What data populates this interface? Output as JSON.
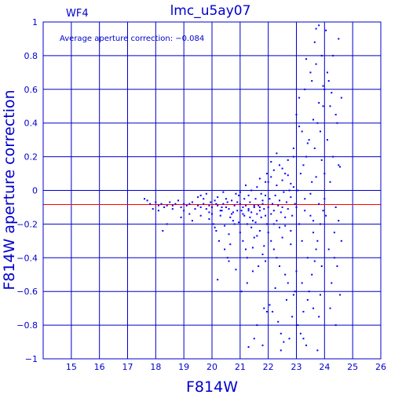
{
  "chart_data": {
    "type": "scatter",
    "title": "lmc_u5ay07",
    "chip_label": "WF4",
    "annotation": "Average aperture correction: −0.084",
    "xlabel": "F814W",
    "ylabel": "F814W aperture correction",
    "xlim": [
      14,
      26
    ],
    "ylim": [
      -1,
      1
    ],
    "x_ticks": [
      15,
      16,
      17,
      18,
      19,
      20,
      21,
      22,
      23,
      24,
      25,
      26
    ],
    "y_ticks": [
      -1,
      -0.8,
      -0.6,
      -0.4,
      -0.2,
      0,
      0.2,
      0.4,
      0.6,
      0.8,
      1
    ],
    "y_tick_labels": [
      "−1",
      "−0.8",
      "−0.6",
      "−0.4",
      "−0.2",
      "0",
      "0.2",
      "0.4",
      "0.6",
      "0.8",
      "1"
    ],
    "grid": true,
    "reference_line": -0.084,
    "colors": {
      "axes": "#0000cc",
      "points": "#0000ff",
      "reference_line": "#ff0000"
    },
    "points": [
      [
        17.6,
        -0.05
      ],
      [
        17.7,
        -0.06
      ],
      [
        17.8,
        -0.08
      ],
      [
        17.9,
        -0.11
      ],
      [
        18.0,
        -0.07
      ],
      [
        18.1,
        -0.09
      ],
      [
        18.2,
        -0.08
      ],
      [
        18.3,
        -0.1
      ],
      [
        18.4,
        -0.09
      ],
      [
        18.5,
        -0.07
      ],
      [
        18.6,
        -0.09
      ],
      [
        18.7,
        -0.08
      ],
      [
        18.9,
        -0.1
      ],
      [
        19.0,
        -0.08
      ],
      [
        19.1,
        -0.09
      ],
      [
        19.2,
        -0.08
      ],
      [
        19.3,
        -0.07
      ],
      [
        19.5,
        -0.09
      ],
      [
        19.6,
        -0.1
      ],
      [
        19.7,
        -0.08
      ],
      [
        19.8,
        -0.11
      ],
      [
        19.9,
        -0.09
      ],
      [
        18.25,
        -0.24
      ],
      [
        18.4,
        -0.2
      ],
      [
        18.9,
        -0.16
      ],
      [
        19.3,
        -0.18
      ],
      [
        19.6,
        -0.15
      ],
      [
        19.9,
        -0.13
      ],
      [
        19.7,
        -0.05
      ],
      [
        19.5,
        -0.04
      ],
      [
        19.95,
        -0.07
      ],
      [
        19.4,
        -0.11
      ],
      [
        18.8,
        -0.06
      ],
      [
        19.0,
        -0.12
      ],
      [
        18.1,
        -0.12
      ],
      [
        19.8,
        -0.02
      ],
      [
        19.6,
        -0.03
      ],
      [
        19.9,
        -0.17
      ],
      [
        19.2,
        -0.14
      ],
      [
        18.6,
        -0.11
      ],
      [
        20.0,
        -0.1
      ],
      [
        20.1,
        -0.06
      ],
      [
        20.2,
        -0.09
      ],
      [
        20.3,
        -0.12
      ],
      [
        20.4,
        -0.08
      ],
      [
        20.5,
        -0.05
      ],
      [
        20.6,
        -0.11
      ],
      [
        20.7,
        -0.14
      ],
      [
        20.8,
        -0.09
      ],
      [
        20.9,
        -0.07
      ],
      [
        20.05,
        -0.2
      ],
      [
        20.15,
        -0.24
      ],
      [
        20.25,
        -0.3
      ],
      [
        20.35,
        -0.12
      ],
      [
        20.45,
        -0.35
      ],
      [
        20.55,
        -0.4
      ],
      [
        20.65,
        -0.16
      ],
      [
        20.75,
        -0.18
      ],
      [
        20.85,
        -0.02
      ],
      [
        20.95,
        -0.03
      ],
      [
        20.1,
        -0.22
      ],
      [
        20.3,
        -0.15
      ],
      [
        20.5,
        -0.1
      ],
      [
        20.7,
        -0.06
      ],
      [
        20.9,
        -0.12
      ],
      [
        20.2,
        -0.04
      ],
      [
        20.4,
        -0.01
      ],
      [
        20.6,
        -0.26
      ],
      [
        20.8,
        -0.2
      ],
      [
        20.0,
        -0.14
      ],
      [
        20.2,
        -0.53
      ],
      [
        20.6,
        -0.42
      ],
      [
        20.85,
        -0.47
      ],
      [
        20.35,
        -0.1
      ],
      [
        20.55,
        -0.07
      ],
      [
        20.75,
        -0.13
      ],
      [
        20.15,
        -0.08
      ],
      [
        20.95,
        -0.19
      ],
      [
        20.45,
        -0.21
      ],
      [
        20.65,
        -0.32
      ],
      [
        21.0,
        -0.08
      ],
      [
        21.05,
        -0.12
      ],
      [
        21.1,
        -0.1
      ],
      [
        21.15,
        -0.15
      ],
      [
        21.2,
        -0.09
      ],
      [
        21.25,
        -0.2
      ],
      [
        21.3,
        -0.11
      ],
      [
        21.35,
        -0.07
      ],
      [
        21.4,
        -0.13
      ],
      [
        21.45,
        -0.18
      ],
      [
        21.5,
        -0.1
      ],
      [
        21.55,
        -0.05
      ],
      [
        21.6,
        -0.14
      ],
      [
        21.65,
        -0.09
      ],
      [
        21.7,
        -0.12
      ],
      [
        21.75,
        -0.16
      ],
      [
        21.8,
        -0.08
      ],
      [
        21.85,
        -0.11
      ],
      [
        21.9,
        -0.03
      ],
      [
        21.95,
        -0.2
      ],
      [
        21.0,
        -0.25
      ],
      [
        21.1,
        -0.3
      ],
      [
        21.2,
        -0.35
      ],
      [
        21.3,
        -0.03
      ],
      [
        21.4,
        0.0
      ],
      [
        21.5,
        -0.28
      ],
      [
        21.6,
        0.02
      ],
      [
        21.7,
        -0.24
      ],
      [
        21.8,
        -0.38
      ],
      [
        21.9,
        -0.42
      ],
      [
        21.05,
        -0.6
      ],
      [
        21.25,
        -0.55
      ],
      [
        21.45,
        -0.48
      ],
      [
        21.65,
        -0.45
      ],
      [
        21.85,
        -0.7
      ],
      [
        21.95,
        -0.72
      ],
      [
        21.15,
        -0.05
      ],
      [
        21.35,
        -0.16
      ],
      [
        21.55,
        -0.19
      ],
      [
        21.75,
        -0.02
      ],
      [
        21.0,
        -0.01
      ],
      [
        21.2,
        0.03
      ],
      [
        21.4,
        -0.22
      ],
      [
        21.6,
        -0.27
      ],
      [
        21.8,
        -0.06
      ],
      [
        21.1,
        -0.14
      ],
      [
        21.3,
        -0.12
      ],
      [
        21.5,
        -0.09
      ],
      [
        21.7,
        -0.1
      ],
      [
        21.9,
        -0.15
      ],
      [
        21.3,
        -0.93
      ],
      [
        21.5,
        -0.88
      ],
      [
        21.6,
        -0.8
      ],
      [
        21.8,
        -0.92
      ],
      [
        21.7,
        0.07
      ],
      [
        21.9,
        0.05
      ],
      [
        21.95,
        0.1
      ],
      [
        21.45,
        -0.34
      ],
      [
        21.25,
        -0.4
      ],
      [
        21.85,
        -0.33
      ],
      [
        22.0,
        -0.1
      ],
      [
        22.05,
        -0.05
      ],
      [
        22.1,
        -0.14
      ],
      [
        22.15,
        -0.08
      ],
      [
        22.2,
        -0.12
      ],
      [
        22.25,
        -0.03
      ],
      [
        22.3,
        -0.18
      ],
      [
        22.35,
        -0.09
      ],
      [
        22.4,
        -0.06
      ],
      [
        22.45,
        -0.13
      ],
      [
        22.5,
        -0.1
      ],
      [
        22.55,
        -0.01
      ],
      [
        22.6,
        -0.16
      ],
      [
        22.65,
        -0.07
      ],
      [
        22.7,
        -0.11
      ],
      [
        22.75,
        0.0
      ],
      [
        22.8,
        -0.04
      ],
      [
        22.85,
        -0.15
      ],
      [
        22.9,
        0.02
      ],
      [
        22.95,
        -0.08
      ],
      [
        22.0,
        0.05
      ],
      [
        22.1,
        0.08
      ],
      [
        22.2,
        0.12
      ],
      [
        22.3,
        0.03
      ],
      [
        22.4,
        0.15
      ],
      [
        22.5,
        0.06
      ],
      [
        22.6,
        0.1
      ],
      [
        22.7,
        0.18
      ],
      [
        22.8,
        0.04
      ],
      [
        22.9,
        0.2
      ],
      [
        22.0,
        -0.25
      ],
      [
        22.1,
        -0.3
      ],
      [
        22.2,
        -0.35
      ],
      [
        22.3,
        -0.4
      ],
      [
        22.4,
        -0.45
      ],
      [
        22.5,
        -0.28
      ],
      [
        22.6,
        -0.5
      ],
      [
        22.7,
        -0.55
      ],
      [
        22.8,
        -0.32
      ],
      [
        22.9,
        -0.62
      ],
      [
        22.05,
        -0.68
      ],
      [
        22.15,
        -0.72
      ],
      [
        22.25,
        -0.58
      ],
      [
        22.35,
        -0.78
      ],
      [
        22.45,
        -0.85
      ],
      [
        22.55,
        -0.9
      ],
      [
        22.65,
        -0.65
      ],
      [
        22.75,
        -0.88
      ],
      [
        22.85,
        -0.75
      ],
      [
        22.95,
        -0.6
      ],
      [
        22.1,
        0.17
      ],
      [
        22.3,
        0.22
      ],
      [
        22.5,
        0.13
      ],
      [
        22.7,
        0.09
      ],
      [
        22.9,
        0.25
      ],
      [
        22.2,
        -0.2
      ],
      [
        22.4,
        -0.22
      ],
      [
        22.6,
        -0.21
      ],
      [
        22.8,
        -0.24
      ],
      [
        22.45,
        -0.95
      ],
      [
        23.0,
        -0.1
      ],
      [
        23.05,
        0.0
      ],
      [
        23.1,
        -0.2
      ],
      [
        23.15,
        0.1
      ],
      [
        23.2,
        -0.3
      ],
      [
        23.25,
        0.15
      ],
      [
        23.3,
        -0.05
      ],
      [
        23.35,
        0.2
      ],
      [
        23.4,
        -0.4
      ],
      [
        23.45,
        0.3
      ],
      [
        23.5,
        -0.15
      ],
      [
        23.55,
        0.05
      ],
      [
        23.6,
        -0.25
      ],
      [
        23.65,
        0.25
      ],
      [
        23.7,
        -0.35
      ],
      [
        23.75,
        0.4
      ],
      [
        23.8,
        -0.08
      ],
      [
        23.85,
        0.35
      ],
      [
        23.9,
        -0.45
      ],
      [
        23.95,
        0.5
      ],
      [
        23.0,
        0.45
      ],
      [
        23.1,
        0.55
      ],
      [
        23.2,
        -0.55
      ],
      [
        23.3,
        0.6
      ],
      [
        23.4,
        -0.65
      ],
      [
        23.5,
        0.7
      ],
      [
        23.6,
        -0.7
      ],
      [
        23.7,
        0.75
      ],
      [
        23.8,
        -0.75
      ],
      [
        23.9,
        0.8
      ],
      [
        23.05,
        -0.8
      ],
      [
        23.15,
        -0.85
      ],
      [
        23.25,
        -0.88
      ],
      [
        23.35,
        -0.92
      ],
      [
        23.45,
        -0.6
      ],
      [
        23.55,
        -0.5
      ],
      [
        23.65,
        -0.42
      ],
      [
        23.75,
        -0.3
      ],
      [
        23.85,
        -0.2
      ],
      [
        23.95,
        -0.12
      ],
      [
        23.2,
        0.35
      ],
      [
        23.4,
        0.28
      ],
      [
        23.6,
        0.42
      ],
      [
        23.8,
        0.52
      ],
      [
        23.3,
        -0.12
      ],
      [
        23.5,
        -0.02
      ],
      [
        23.7,
        0.08
      ],
      [
        23.9,
        0.18
      ],
      [
        23.1,
        0.38
      ],
      [
        23.55,
        0.65
      ],
      [
        23.7,
        0.96
      ],
      [
        23.8,
        0.98
      ],
      [
        23.95,
        0.62
      ],
      [
        23.65,
        0.88
      ],
      [
        23.35,
        0.78
      ],
      [
        23.75,
        -0.95
      ],
      [
        23.85,
        -0.62
      ],
      [
        23.0,
        -0.48
      ],
      [
        23.25,
        -0.72
      ],
      [
        23.6,
        -0.18
      ],
      [
        24.0,
        0.1
      ],
      [
        24.05,
        -0.15
      ],
      [
        24.1,
        0.3
      ],
      [
        24.15,
        -0.35
      ],
      [
        24.2,
        0.5
      ],
      [
        24.25,
        -0.55
      ],
      [
        24.3,
        0.2
      ],
      [
        24.35,
        -0.25
      ],
      [
        24.4,
        0.45
      ],
      [
        24.45,
        -0.45
      ],
      [
        24.5,
        0.15
      ],
      [
        24.55,
        -0.62
      ],
      [
        24.6,
        0.55
      ],
      [
        24.0,
        0.6
      ],
      [
        24.1,
        0.7
      ],
      [
        24.2,
        -0.7
      ],
      [
        24.3,
        0.8
      ],
      [
        24.4,
        -0.8
      ],
      [
        24.5,
        0.9
      ],
      [
        24.05,
        0.95
      ],
      [
        24.15,
        0.65
      ],
      [
        24.25,
        0.58
      ],
      [
        24.35,
        -0.4
      ],
      [
        24.45,
        0.4
      ],
      [
        24.55,
        0.14
      ],
      [
        24.6,
        -0.3
      ],
      [
        24.0,
        -0.05
      ],
      [
        24.2,
        0.05
      ],
      [
        24.4,
        -0.1
      ],
      [
        24.5,
        -0.18
      ]
    ]
  }
}
